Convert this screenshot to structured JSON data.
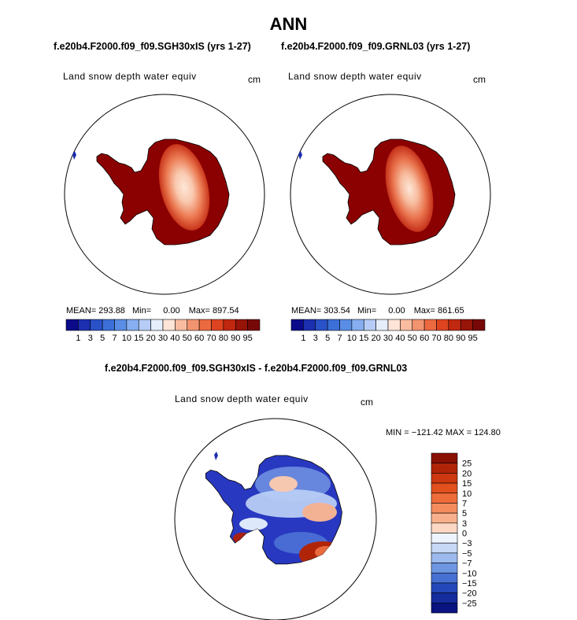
{
  "title": "ANN",
  "panels": [
    {
      "case": "f.e20b4.F2000.f09_f09.SGH30xIS (yrs 1-27)",
      "variable": "Land snow depth water equiv",
      "units": "cm",
      "stats": {
        "mean_label": "MEAN=",
        "mean": "293.88",
        "min_label": "Min=",
        "min": "0.00",
        "max_label": "Max=",
        "max": "897.54"
      }
    },
    {
      "case": "f.e20b4.F2000.f09_f09.GRNL03 (yrs 1-27)",
      "variable": "Land snow depth water equiv",
      "units": "cm",
      "stats": {
        "mean_label": "MEAN=",
        "mean": "303.54",
        "min_label": "Min=",
        "min": "0.00",
        "max_label": "Max=",
        "max": "861.65"
      }
    }
  ],
  "colorbar_main": {
    "labels": [
      "1",
      "3",
      "5",
      "7",
      "10",
      "15",
      "20",
      "30",
      "40",
      "50",
      "60",
      "70",
      "80",
      "90",
      "95"
    ],
    "colors": [
      "#0a0a8a",
      "#1c2fb0",
      "#2a52c8",
      "#3c6fd8",
      "#5a8ee6",
      "#86aef0",
      "#b6ccf6",
      "#e6eefc",
      "#fde4d6",
      "#f9bca0",
      "#f39470",
      "#ec6a40",
      "#de4420",
      "#c02810",
      "#961408",
      "#780808"
    ]
  },
  "difference": {
    "title": "f.e20b4.F2000.f09_f09.SGH30xIS - f.e20b4.F2000.f09_f09.GRNL03",
    "variable": "Land snow depth water equiv",
    "units": "cm",
    "stats": "MIN = −121.42  MAX = 124.80",
    "colorbar": {
      "labels": [
        "25",
        "20",
        "15",
        "10",
        "7",
        "5",
        "3",
        "0",
        "−3",
        "−5",
        "−7",
        "−10",
        "−15",
        "−20",
        "−25"
      ],
      "colors": [
        "#8a1004",
        "#b02408",
        "#cc3810",
        "#e2501e",
        "#ee6c3a",
        "#f48c5e",
        "#f8b08c",
        "#fcd8c4",
        "#eef4fe",
        "#c6d8f6",
        "#9cbaee",
        "#6e96e2",
        "#4670d2",
        "#2448b8",
        "#142c9c",
        "#0a1480"
      ]
    }
  },
  "map_colors": {
    "low_value": "#8b0000",
    "core_high": "#f5b896",
    "core_peak": "#fde7d8",
    "diff_base": "#2838c0",
    "diff_positive": "#a82010",
    "diff_neutral": "#dde8fa"
  }
}
